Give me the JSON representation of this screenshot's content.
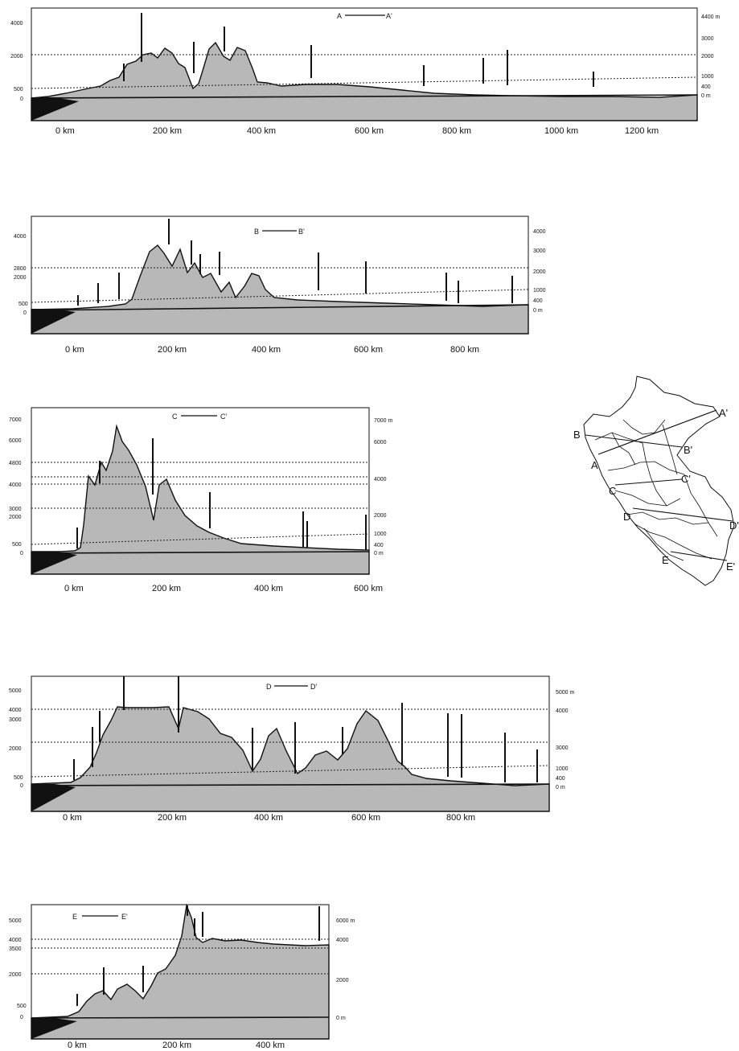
{
  "profiles": [
    {
      "id": "A",
      "legend_label_start": "A",
      "legend_label_end": "A'",
      "x_ticks": [
        "0 km",
        "200 km",
        "400 km",
        "600 km",
        "800 km",
        "1000 km",
        "1200 km"
      ],
      "left_axis_labels": [
        "4000",
        "2000",
        "500",
        "0"
      ],
      "right_axis_labels": [
        "4400 m",
        "3000",
        "2000",
        "1000",
        "400",
        "0 m"
      ],
      "marker_count": 9
    },
    {
      "id": "B",
      "legend_label_start": "B",
      "legend_label_end": "B'",
      "x_ticks": [
        "0 km",
        "200 km",
        "400 km",
        "600 km",
        "800 km"
      ],
      "left_axis_labels": [
        "4000",
        "2800",
        "2000",
        "500",
        "0"
      ],
      "right_axis_labels": [
        "4000",
        "3000",
        "2000",
        "1000",
        "400",
        "0 m"
      ],
      "marker_count": 12
    },
    {
      "id": "C",
      "legend_label_start": "C",
      "legend_label_end": "C'",
      "x_ticks": [
        "0 km",
        "200 km",
        "400 km",
        "600 km"
      ],
      "left_axis_labels": [
        "7000",
        "6000",
        "4800",
        "4000",
        "3000",
        "2000",
        "500",
        "0"
      ],
      "right_axis_labels": [
        "7000 m",
        "6000",
        "4000",
        "2000",
        "1000",
        "400",
        "0 m"
      ],
      "marker_count": 7
    },
    {
      "id": "D",
      "legend_label_start": "D",
      "legend_label_end": "D'",
      "x_ticks": [
        "0 km",
        "200 km",
        "400 km",
        "600 km",
        "800 km"
      ],
      "left_axis_labels": [
        "5000",
        "4000",
        "3000",
        "2000",
        "500",
        "0"
      ],
      "right_axis_labels": [
        "5000 m",
        "4000",
        "3000",
        "1000",
        "400",
        "0 m"
      ],
      "marker_count": 13
    },
    {
      "id": "E",
      "legend_label_start": "E",
      "legend_label_end": "E'",
      "x_ticks": [
        "0 km",
        "200 km",
        "400 km"
      ],
      "left_axis_labels": [
        "5000",
        "4000",
        "3500",
        "2000",
        "500",
        "0"
      ],
      "right_axis_labels": [
        "6000 m",
        "4000",
        "2000",
        "0 m"
      ],
      "marker_count": 7
    }
  ],
  "map_labels": [
    "A'",
    "B",
    "B'",
    "A",
    "C'",
    "C",
    "D",
    "D'",
    "E",
    "E'"
  ]
}
